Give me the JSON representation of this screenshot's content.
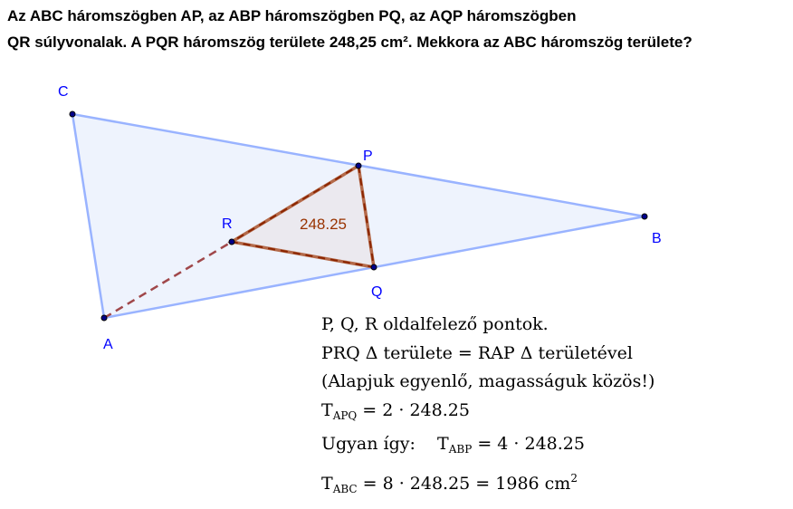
{
  "question": {
    "line1": "Az ABC háromszögben AP, az ABP háromszögben PQ, az AQP háromszögben",
    "line2": "QR súlyvonalak. A PQR háromszög területe 248,25 cm². Mekkora az ABC háromszög területe?"
  },
  "figure": {
    "points": {
      "A": "A",
      "B": "B",
      "C": "C",
      "P": "P",
      "Q": "Q",
      "R": "R"
    },
    "area_label": "248.25",
    "colors": {
      "outer_stroke": "#99b3ff",
      "outer_fill": "#eef3fd",
      "inner_stroke": "#993300",
      "inner_fill": "#ebe9ef",
      "label": "#0000ff"
    }
  },
  "explanation": {
    "l1": "P, Q, R  oldalfelező pontok.",
    "l2": "PRQ Δ  területe  = RAP Δ területével",
    "l3": "(Alapjuk egyenlő, magasságuk közös!)",
    "l4_T": "T",
    "l4_sub": "APQ",
    "l4_rest": " = 2 · 248.25",
    "l5_pre": "Ugyan így:    T",
    "l5_sub": "ABP",
    "l5_rest": " = 4 · 248.25",
    "l6_T": "T",
    "l6_sub": "ABC",
    "l6_rest": " = 8 · 248.25 = 1986 cm",
    "l6_sup": "2"
  }
}
